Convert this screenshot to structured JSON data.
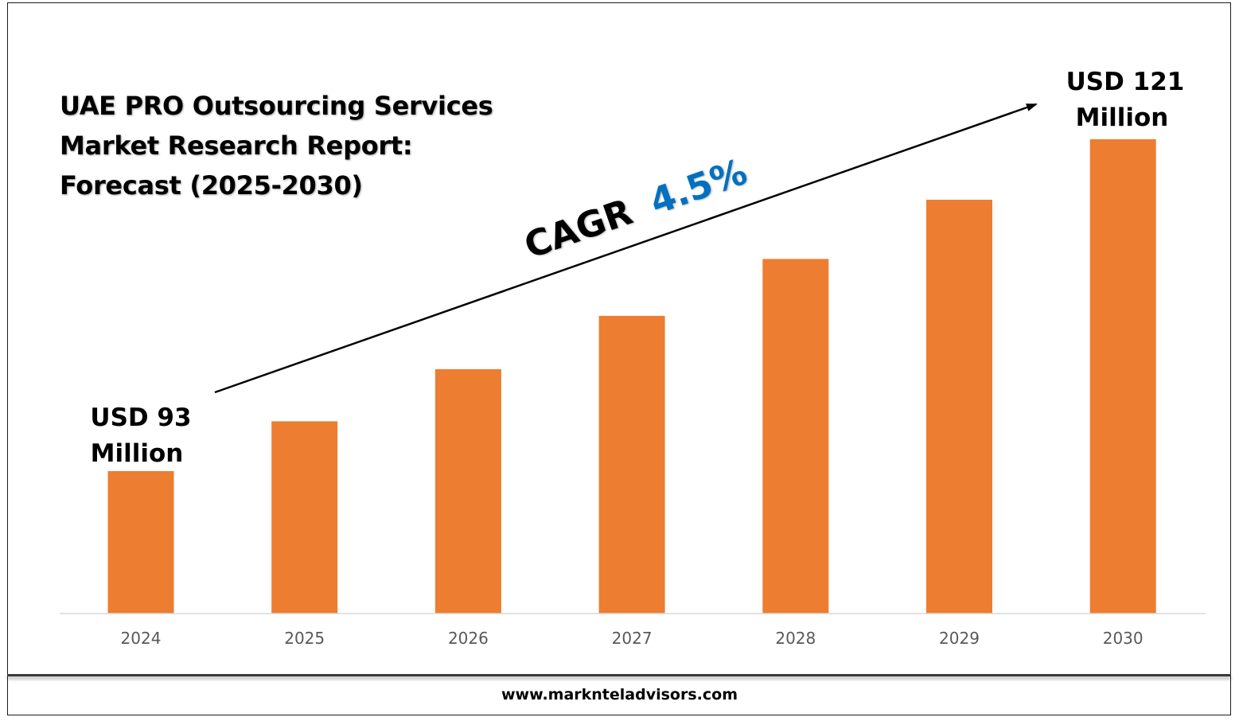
{
  "title_lines": [
    "UAE PRO Outsourcing Services",
    "Market Research Report:",
    "Forecast (2025-2030)"
  ],
  "annotations": {
    "start_line1": "USD 93",
    "start_line2": "Million",
    "end_line1": "USD 121",
    "end_line2": "Million",
    "cagr_prefix": "CAGR",
    "cagr_value": "4.5%"
  },
  "footer": {
    "website": "www.marknteladvisors.com"
  },
  "colors": {
    "bar": "#ED7D31",
    "cagr_value": "#0070C0",
    "axis": "#D9D9D9",
    "tick_text": "#595959"
  },
  "chart_data": {
    "type": "bar",
    "categories": [
      "2024",
      "2025",
      "2026",
      "2027",
      "2028",
      "2029",
      "2030"
    ],
    "values": [
      93,
      97.2,
      101.6,
      106.1,
      110.9,
      115.9,
      121
    ]
  }
}
